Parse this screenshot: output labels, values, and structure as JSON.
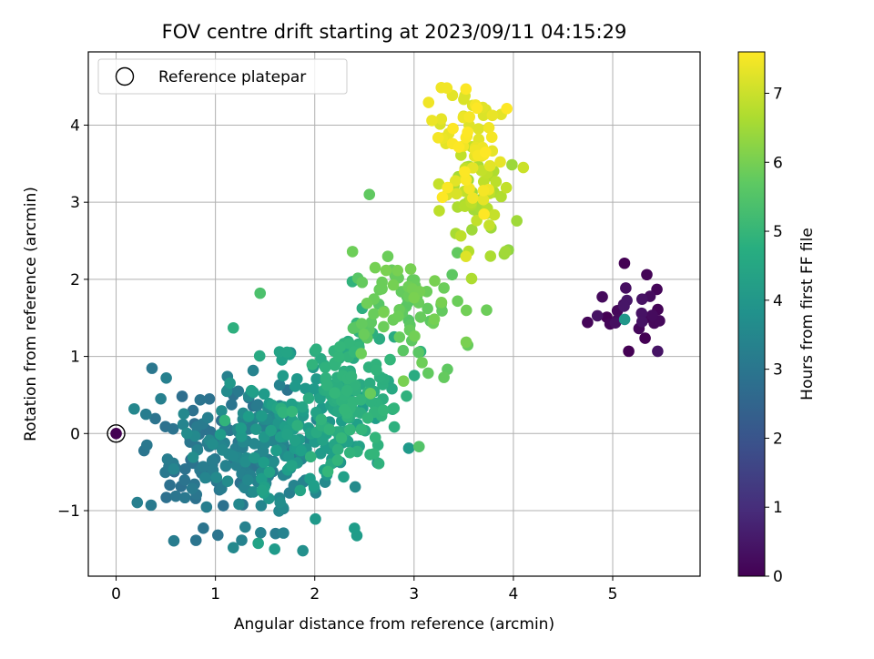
{
  "chart_data": {
    "type": "scatter",
    "title": "FOV centre drift starting at 2023/09/11 04:15:29",
    "xlabel": "Angular distance from reference (arcmin)",
    "ylabel": "Rotation from reference (arcmin)",
    "xlim": [
      -0.28,
      5.88
    ],
    "ylim": [
      -1.85,
      4.95
    ],
    "xticks": [
      0,
      1,
      2,
      3,
      4,
      5
    ],
    "yticks": [
      -1,
      0,
      1,
      2,
      3,
      4
    ],
    "grid": true,
    "legend": {
      "position": "top-left",
      "label": "Reference platepar"
    },
    "reference_point": {
      "x": 0,
      "y": 0
    },
    "colorbar": {
      "label": "Hours from first FF file",
      "min": 0,
      "max": 7.6,
      "ticks": [
        0,
        1,
        2,
        3,
        4,
        5,
        6,
        7
      ],
      "colormap": "viridis"
    },
    "clusters": [
      {
        "hours": 0.2,
        "cx": 5.2,
        "cy": 1.6,
        "sx": 0.22,
        "sy": 0.3,
        "n": 28
      },
      {
        "hours": 3.0,
        "cx": 0.9,
        "cy": -0.3,
        "sx": 0.35,
        "sy": 0.45,
        "n": 90
      },
      {
        "hours": 3.5,
        "cx": 1.4,
        "cy": -0.2,
        "sx": 0.35,
        "sy": 0.45,
        "n": 120
      },
      {
        "hours": 4.2,
        "cx": 1.8,
        "cy": 0.0,
        "sx": 0.35,
        "sy": 0.5,
        "n": 120
      },
      {
        "hours": 4.8,
        "cx": 2.3,
        "cy": 0.55,
        "sx": 0.3,
        "sy": 0.45,
        "n": 140
      },
      {
        "hours": 5.8,
        "cx": 2.9,
        "cy": 1.7,
        "sx": 0.3,
        "sy": 0.35,
        "n": 80
      },
      {
        "hours": 6.7,
        "cx": 3.65,
        "cy": 3.0,
        "sx": 0.22,
        "sy": 0.35,
        "n": 55
      },
      {
        "hours": 7.4,
        "cx": 3.55,
        "cy": 3.75,
        "sx": 0.18,
        "sy": 0.45,
        "n": 65
      }
    ],
    "outliers": [
      {
        "x": 5.12,
        "y": 1.48,
        "hours": 4.0
      },
      {
        "x": 2.55,
        "y": 3.1,
        "hours": 5.7
      },
      {
        "x": 2.38,
        "y": 2.36,
        "hours": 5.9
      },
      {
        "x": 1.45,
        "y": 1.82,
        "hours": 5.4
      },
      {
        "x": 1.18,
        "y": 1.37,
        "hours": 4.8
      },
      {
        "x": 0.3,
        "y": 0.25,
        "hours": 3.2
      },
      {
        "x": 0.45,
        "y": 0.45,
        "hours": 3.3
      },
      {
        "x": 1.18,
        "y": -1.48,
        "hours": 3.6
      },
      {
        "x": 1.88,
        "y": -1.52,
        "hours": 3.8
      },
      {
        "x": 2.4,
        "y": -1.23,
        "hours": 4.2
      },
      {
        "x": 3.05,
        "y": -0.17,
        "hours": 5.5
      },
      {
        "x": 3.08,
        "y": 0.92,
        "hours": 5.9
      },
      {
        "x": 3.95,
        "y": 2.38,
        "hours": 6.3
      },
      {
        "x": 4.1,
        "y": 3.45,
        "hours": 7.0
      },
      {
        "x": 3.18,
        "y": 4.06,
        "hours": 7.4
      }
    ]
  }
}
